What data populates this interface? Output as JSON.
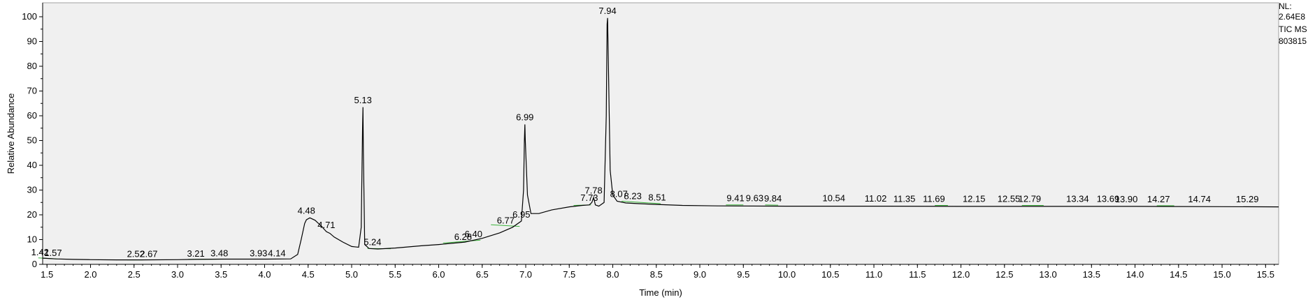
{
  "chart_data": {
    "type": "line",
    "title": "",
    "xlabel": "Time (min)",
    "ylabel": "Relative Abundance",
    "xlim": [
      1.45,
      15.65
    ],
    "ylim": [
      0,
      100
    ],
    "x_ticks": [
      1.5,
      2.0,
      2.5,
      3.0,
      3.5,
      4.0,
      4.5,
      5.0,
      5.5,
      6.0,
      6.5,
      7.0,
      7.5,
      8.0,
      8.5,
      9.0,
      9.5,
      10.0,
      10.5,
      11.0,
      11.5,
      12.0,
      12.5,
      13.0,
      13.5,
      14.0,
      14.5,
      15.0,
      15.5
    ],
    "x_tick_labels": [
      "1.5",
      "2.0",
      "2.5",
      "3.0",
      "3.5",
      "4.0",
      "4.5",
      "5.0",
      "5.5",
      "6.0",
      "6.5",
      "7.0",
      "7.5",
      "8.0",
      "8.5",
      "9.0",
      "9.5",
      "10.0",
      "10.5",
      "11.0",
      "11.5",
      "12.0",
      "12.5",
      "13.0",
      "13.5",
      "14.0",
      "14.5",
      "15.0",
      "15.5"
    ],
    "y_ticks": [
      0,
      10,
      20,
      30,
      40,
      50,
      60,
      70,
      80,
      90,
      100
    ],
    "y_tick_labels": [
      "0",
      "10",
      "20",
      "30",
      "40",
      "50",
      "60",
      "70",
      "80",
      "90",
      "100"
    ],
    "series": [
      {
        "color": "#000000",
        "x": [
          1.45,
          1.6,
          1.8,
          2.0,
          2.3,
          2.6,
          3.0,
          3.2,
          3.5,
          4.0,
          4.3,
          4.38,
          4.42,
          4.46,
          4.48,
          4.52,
          4.58,
          4.65,
          4.71,
          4.75,
          4.8,
          4.9,
          5.0,
          5.08,
          5.11,
          5.125,
          5.13,
          5.135,
          5.15,
          5.2,
          5.3,
          5.5,
          5.8,
          6.0,
          6.3,
          6.5,
          6.7,
          6.85,
          6.95,
          6.975,
          6.985,
          6.99,
          6.995,
          7.02,
          7.06,
          7.15,
          7.3,
          7.5,
          7.65,
          7.73,
          7.76,
          7.78,
          7.8,
          7.84,
          7.9,
          7.925,
          7.935,
          7.94,
          7.95,
          7.97,
          8.0,
          8.05,
          8.15,
          8.3,
          8.5,
          8.8,
          9.2,
          10.0,
          11.0,
          12.0,
          13.0,
          14.0,
          15.0,
          15.65
        ],
        "y": [
          2.5,
          2.2,
          2.0,
          1.9,
          1.8,
          1.8,
          1.9,
          2.0,
          2.1,
          2.1,
          2.2,
          4.0,
          10.0,
          16.5,
          18.0,
          18.8,
          17.8,
          15.5,
          13.2,
          12.5,
          11.0,
          9.0,
          7.2,
          6.9,
          15.0,
          55.0,
          63.5,
          45.0,
          8.0,
          6.4,
          6.2,
          6.6,
          7.5,
          8.0,
          9.0,
          10.5,
          12.7,
          15.0,
          17.5,
          30.0,
          50.0,
          56.5,
          50.0,
          28.0,
          20.5,
          20.5,
          22.0,
          23.2,
          23.8,
          24.0,
          25.0,
          27.0,
          24.0,
          23.5,
          25.0,
          60.0,
          97.0,
          99.5,
          80.0,
          38.0,
          28.0,
          25.5,
          24.8,
          24.5,
          24.2,
          23.8,
          23.6,
          23.5,
          23.5,
          23.4,
          23.4,
          23.4,
          23.3,
          23.2
        ]
      }
    ],
    "peak_labels": [
      {
        "x": 1.42,
        "y": 2.5,
        "label": "1.42"
      },
      {
        "x": 1.57,
        "y": 2.2,
        "label": "1.57"
      },
      {
        "x": 2.52,
        "y": 1.8,
        "label": "2.52"
      },
      {
        "x": 2.67,
        "y": 1.8,
        "label": "2.67"
      },
      {
        "x": 3.21,
        "y": 2.0,
        "label": "3.21"
      },
      {
        "x": 3.48,
        "y": 2.1,
        "label": "3.48"
      },
      {
        "x": 3.93,
        "y": 2.1,
        "label": "3.93"
      },
      {
        "x": 4.14,
        "y": 2.1,
        "label": "4.14"
      },
      {
        "x": 4.48,
        "y": 19.3,
        "label": "4.48"
      },
      {
        "x": 4.71,
        "y": 13.5,
        "label": "4.71"
      },
      {
        "x": 5.13,
        "y": 64.0,
        "label": "5.13"
      },
      {
        "x": 5.24,
        "y": 6.6,
        "label": "5.24"
      },
      {
        "x": 6.28,
        "y": 8.8,
        "label": "6.28"
      },
      {
        "x": 6.4,
        "y": 9.8,
        "label": "6.40"
      },
      {
        "x": 6.77,
        "y": 15.4,
        "label": "6.77"
      },
      {
        "x": 6.95,
        "y": 17.8,
        "label": "6.95"
      },
      {
        "x": 6.99,
        "y": 57.0,
        "label": "6.99"
      },
      {
        "x": 7.73,
        "y": 24.5,
        "label": "7.73"
      },
      {
        "x": 7.78,
        "y": 27.5,
        "label": "7.78"
      },
      {
        "x": 7.94,
        "y": 100.0,
        "label": "7.94"
      },
      {
        "x": 8.07,
        "y": 26.0,
        "label": "8.07"
      },
      {
        "x": 8.23,
        "y": 25.2,
        "label": "8.23"
      },
      {
        "x": 8.51,
        "y": 24.6,
        "label": "8.51"
      },
      {
        "x": 9.41,
        "y": 24.3,
        "label": "9.41"
      },
      {
        "x": 9.63,
        "y": 24.3,
        "label": "9.63"
      },
      {
        "x": 9.84,
        "y": 24.2,
        "label": "9.84"
      },
      {
        "x": 10.54,
        "y": 24.3,
        "label": "10.54"
      },
      {
        "x": 11.02,
        "y": 24.2,
        "label": "11.02"
      },
      {
        "x": 11.35,
        "y": 24.1,
        "label": "11.35"
      },
      {
        "x": 11.69,
        "y": 24.1,
        "label": "11.69"
      },
      {
        "x": 12.15,
        "y": 24.1,
        "label": "12.15"
      },
      {
        "x": 12.55,
        "y": 24.1,
        "label": "12.55"
      },
      {
        "x": 12.79,
        "y": 24.1,
        "label": "12.79"
      },
      {
        "x": 13.34,
        "y": 24.1,
        "label": "13.34"
      },
      {
        "x": 13.69,
        "y": 24.1,
        "label": "13.69"
      },
      {
        "x": 13.9,
        "y": 24.0,
        "label": "13.90"
      },
      {
        "x": 14.27,
        "y": 24.0,
        "label": "14.27"
      },
      {
        "x": 14.74,
        "y": 24.0,
        "label": "14.74"
      },
      {
        "x": 15.29,
        "y": 24.0,
        "label": "15.29"
      }
    ],
    "baseline_segments": [
      {
        "x1": 1.4,
        "x2": 1.62,
        "y1": 2.6,
        "y2": 2.2
      },
      {
        "x1": 2.42,
        "x2": 2.6,
        "y1": 1.8,
        "y2": 1.8
      },
      {
        "x1": 3.12,
        "x2": 3.55,
        "y1": 2.0,
        "y2": 2.1
      },
      {
        "x1": 5.18,
        "x2": 5.45,
        "y1": 6.4,
        "y2": 6.3
      },
      {
        "x1": 6.05,
        "x2": 6.48,
        "y1": 8.6,
        "y2": 9.8
      },
      {
        "x1": 6.6,
        "x2": 6.93,
        "y1": 16.0,
        "y2": 15.3
      },
      {
        "x1": 7.55,
        "x2": 7.75,
        "y1": 23.8,
        "y2": 24.0
      },
      {
        "x1": 8.1,
        "x2": 8.55,
        "y1": 25.5,
        "y2": 24.5
      },
      {
        "x1": 9.3,
        "x2": 9.5,
        "y1": 24.0,
        "y2": 24.0
      },
      {
        "x1": 9.75,
        "x2": 9.9,
        "y1": 24.0,
        "y2": 23.9
      },
      {
        "x1": 11.7,
        "x2": 11.85,
        "y1": 23.8,
        "y2": 23.8
      },
      {
        "x1": 12.7,
        "x2": 12.95,
        "y1": 23.8,
        "y2": 23.8
      },
      {
        "x1": 14.25,
        "x2": 14.45,
        "y1": 23.7,
        "y2": 23.7
      }
    ]
  },
  "info": {
    "nl_label": "NL:",
    "nl_value": "2.64E8",
    "scan_filter": "TIC  MS",
    "file_name": "803815"
  },
  "colors": {
    "plot_background": "#f0f0f0",
    "trace": "#000000",
    "baseline": "#3cb43c"
  }
}
